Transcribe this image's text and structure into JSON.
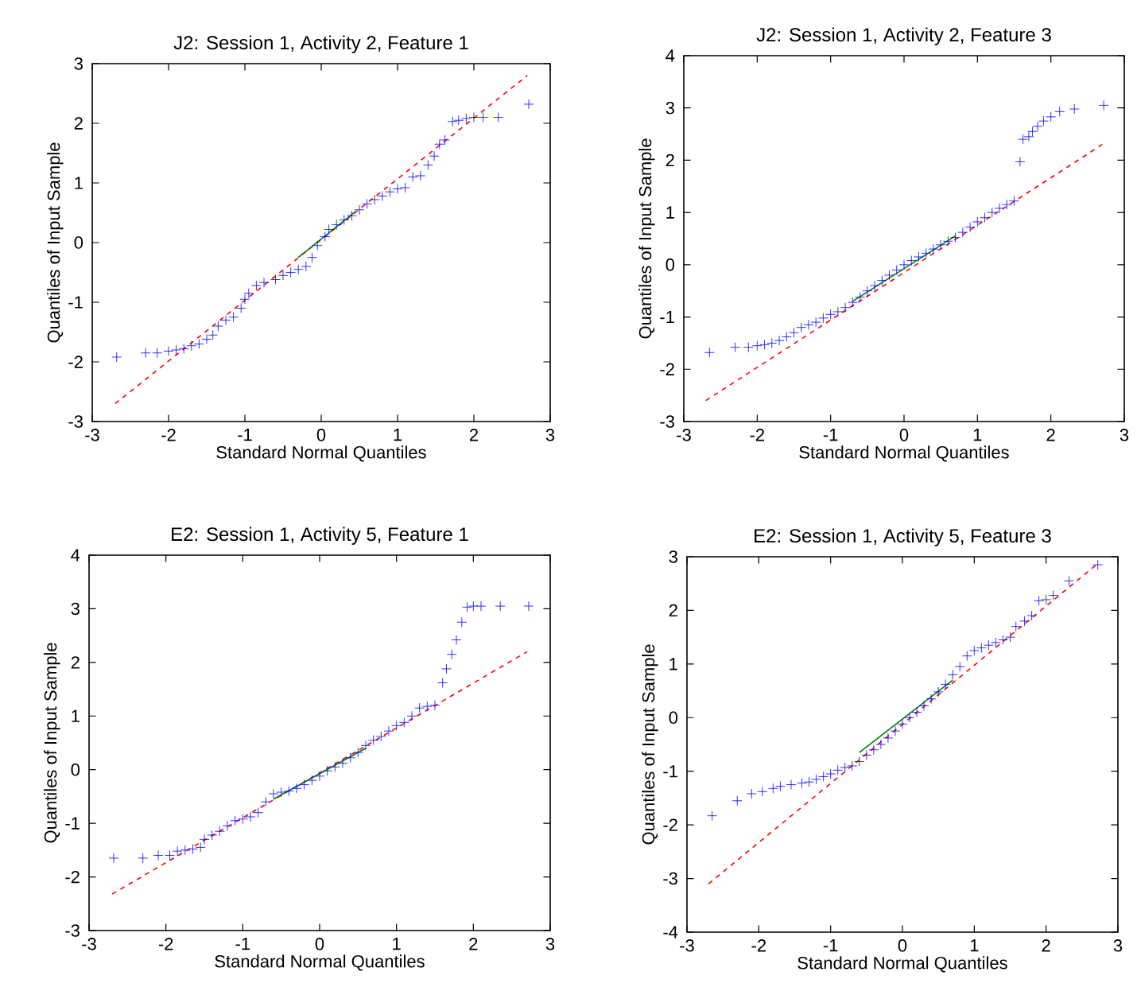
{
  "chart_data": [
    {
      "type": "scatter",
      "title": "J2: Session 1, Activity 2, Feature 1",
      "xlabel": "Standard Normal Quantiles",
      "ylabel": "Quantiles of Input Sample",
      "xlim": [
        -3,
        3
      ],
      "ylim": [
        -3,
        3
      ],
      "xticks": [
        -3,
        -2,
        -1,
        0,
        1,
        2,
        3
      ],
      "yticks": [
        -3,
        -2,
        -1,
        0,
        1,
        2,
        3
      ],
      "series": [
        {
          "type": "scatter",
          "marker": "cross",
          "color": "#0000ff",
          "x": [
            -2.68,
            -2.3,
            -2.15,
            -2.0,
            -1.9,
            -1.8,
            -1.7,
            -1.6,
            -1.5,
            -1.42,
            -1.35,
            -1.25,
            -1.15,
            -1.05,
            -1.0,
            -0.95,
            -0.85,
            -0.75,
            -0.6,
            -0.5,
            -0.4,
            -0.3,
            -0.2,
            -0.12,
            -0.05,
            0.05,
            0.1,
            0.2,
            0.3,
            0.4,
            0.5,
            0.6,
            0.7,
            0.8,
            0.9,
            1.0,
            1.1,
            1.2,
            1.3,
            1.4,
            1.48,
            1.55,
            1.62,
            1.72,
            1.8,
            1.9,
            2.0,
            2.12,
            2.32,
            2.72
          ],
          "values": [
            -1.92,
            -1.85,
            -1.85,
            -1.82,
            -1.8,
            -1.78,
            -1.73,
            -1.7,
            -1.62,
            -1.55,
            -1.4,
            -1.3,
            -1.25,
            -1.1,
            -0.95,
            -0.85,
            -0.72,
            -0.67,
            -0.62,
            -0.55,
            -0.5,
            -0.45,
            -0.4,
            -0.25,
            -0.05,
            0.1,
            0.22,
            0.3,
            0.38,
            0.45,
            0.55,
            0.65,
            0.72,
            0.78,
            0.85,
            0.9,
            0.92,
            1.1,
            1.12,
            1.3,
            1.45,
            1.65,
            1.72,
            2.03,
            2.05,
            2.08,
            2.1,
            2.1,
            2.1,
            2.32
          ]
        },
        {
          "type": "line",
          "line_style": "dashed",
          "color": "#ff0000",
          "x": [
            -2.7,
            2.7
          ],
          "values": [
            -2.7,
            2.8
          ]
        },
        {
          "type": "line",
          "line_style": "solid",
          "color": "#008000",
          "x": [
            -0.3,
            0.45
          ],
          "values": [
            -0.25,
            0.52
          ]
        }
      ]
    },
    {
      "type": "scatter",
      "title": "J2: Session 1, Activity 2, Feature 3",
      "xlabel": "Standard Normal Quantiles",
      "ylabel": "Quantiles of Input Sample",
      "xlim": [
        -3,
        3
      ],
      "ylim": [
        -3,
        4
      ],
      "xticks": [
        -3,
        -2,
        -1,
        0,
        1,
        2,
        3
      ],
      "yticks": [
        -3,
        -2,
        -1,
        0,
        1,
        2,
        3,
        4
      ],
      "series": [
        {
          "type": "scatter",
          "marker": "cross",
          "color": "#0000ff",
          "x": [
            -2.65,
            -2.3,
            -2.12,
            -2.0,
            -1.9,
            -1.8,
            -1.7,
            -1.6,
            -1.5,
            -1.4,
            -1.3,
            -1.2,
            -1.1,
            -1.0,
            -0.9,
            -0.8,
            -0.7,
            -0.6,
            -0.5,
            -0.4,
            -0.3,
            -0.2,
            -0.1,
            0,
            0.1,
            0.2,
            0.3,
            0.4,
            0.5,
            0.6,
            0.7,
            0.8,
            0.9,
            1.0,
            1.1,
            1.2,
            1.3,
            1.4,
            1.5,
            1.58,
            1.62,
            1.7,
            1.75,
            1.82,
            1.9,
            2.0,
            2.12,
            2.32,
            2.72
          ],
          "values": [
            -1.68,
            -1.58,
            -1.58,
            -1.55,
            -1.53,
            -1.5,
            -1.45,
            -1.38,
            -1.3,
            -1.2,
            -1.15,
            -1.1,
            -1.02,
            -0.95,
            -0.9,
            -0.82,
            -0.72,
            -0.62,
            -0.5,
            -0.4,
            -0.3,
            -0.2,
            -0.1,
            0,
            0.08,
            0.15,
            0.22,
            0.3,
            0.38,
            0.45,
            0.52,
            0.62,
            0.72,
            0.82,
            0.9,
            1.0,
            1.08,
            1.15,
            1.22,
            1.97,
            2.4,
            2.45,
            2.55,
            2.65,
            2.75,
            2.83,
            2.93,
            2.98,
            3.05
          ]
        },
        {
          "type": "line",
          "line_style": "dashed",
          "color": "#ff0000",
          "x": [
            -2.7,
            2.7
          ],
          "values": [
            -2.6,
            2.3
          ]
        },
        {
          "type": "line",
          "line_style": "solid",
          "color": "#008000",
          "x": [
            -0.7,
            0.7
          ],
          "values": [
            -0.7,
            0.55
          ]
        }
      ]
    },
    {
      "type": "scatter",
      "title": "E2: Session 1, Activity 5, Feature 1",
      "xlabel": "Standard Normal Quantiles",
      "ylabel": "Quantiles of Input Sample",
      "xlim": [
        -3,
        3
      ],
      "ylim": [
        -3,
        4
      ],
      "xticks": [
        -3,
        -2,
        -1,
        0,
        1,
        2,
        3
      ],
      "yticks": [
        -3,
        -2,
        -1,
        0,
        1,
        2,
        3,
        4
      ],
      "series": [
        {
          "type": "scatter",
          "marker": "cross",
          "color": "#0000ff",
          "x": [
            -2.68,
            -2.3,
            -2.1,
            -1.95,
            -1.85,
            -1.75,
            -1.65,
            -1.55,
            -1.5,
            -1.4,
            -1.3,
            -1.2,
            -1.1,
            -1.0,
            -0.9,
            -0.8,
            -0.7,
            -0.6,
            -0.5,
            -0.4,
            -0.3,
            -0.2,
            -0.1,
            0,
            0.1,
            0.2,
            0.3,
            0.4,
            0.5,
            0.6,
            0.7,
            0.8,
            0.9,
            1.0,
            1.1,
            1.2,
            1.3,
            1.4,
            1.5,
            1.6,
            1.65,
            1.72,
            1.78,
            1.85,
            1.92,
            2.0,
            2.1,
            2.35,
            2.72
          ],
          "values": [
            -1.65,
            -1.65,
            -1.6,
            -1.6,
            -1.52,
            -1.5,
            -1.48,
            -1.45,
            -1.3,
            -1.22,
            -1.15,
            -1.05,
            -0.95,
            -0.92,
            -0.88,
            -0.8,
            -0.6,
            -0.45,
            -0.42,
            -0.4,
            -0.35,
            -0.28,
            -0.2,
            -0.12,
            -0.02,
            0.05,
            0.12,
            0.22,
            0.32,
            0.45,
            0.55,
            0.62,
            0.72,
            0.82,
            0.88,
            1.0,
            1.15,
            1.18,
            1.2,
            1.62,
            1.88,
            2.15,
            2.42,
            2.75,
            3.03,
            3.05,
            3.05,
            3.05,
            3.05
          ]
        },
        {
          "type": "line",
          "line_style": "dashed",
          "color": "#ff0000",
          "x": [
            -2.7,
            2.7
          ],
          "values": [
            -2.32,
            2.2
          ]
        },
        {
          "type": "line",
          "line_style": "solid",
          "color": "#008000",
          "x": [
            -0.6,
            0.6
          ],
          "values": [
            -0.55,
            0.4
          ]
        }
      ]
    },
    {
      "type": "scatter",
      "title": "E2: Session 1, Activity 5, Feature 3",
      "xlabel": "Standard Normal Quantiles",
      "ylabel": "Quantiles of Input Sample",
      "xlim": [
        -3,
        3
      ],
      "ylim": [
        -4,
        3
      ],
      "xticks": [
        -3,
        -2,
        -1,
        0,
        1,
        2,
        3
      ],
      "yticks": [
        -4,
        -3,
        -2,
        -1,
        0,
        1,
        2,
        3
      ],
      "series": [
        {
          "type": "scatter",
          "marker": "cross",
          "color": "#0000ff",
          "x": [
            -2.65,
            -2.3,
            -2.1,
            -1.95,
            -1.8,
            -1.7,
            -1.55,
            -1.4,
            -1.3,
            -1.2,
            -1.1,
            -1.0,
            -0.9,
            -0.8,
            -0.7,
            -0.6,
            -0.5,
            -0.4,
            -0.3,
            -0.2,
            -0.1,
            0,
            0.1,
            0.2,
            0.3,
            0.4,
            0.5,
            0.6,
            0.7,
            0.8,
            0.9,
            1.0,
            1.1,
            1.2,
            1.3,
            1.4,
            1.5,
            1.58,
            1.7,
            1.8,
            1.9,
            2.0,
            2.1,
            2.32,
            2.72
          ],
          "values": [
            -1.83,
            -1.55,
            -1.42,
            -1.38,
            -1.32,
            -1.28,
            -1.25,
            -1.22,
            -1.2,
            -1.15,
            -1.1,
            -1.05,
            -0.98,
            -0.93,
            -0.9,
            -0.82,
            -0.7,
            -0.6,
            -0.5,
            -0.38,
            -0.25,
            -0.12,
            0.0,
            0.1,
            0.22,
            0.35,
            0.48,
            0.62,
            0.8,
            0.95,
            1.15,
            1.25,
            1.3,
            1.35,
            1.4,
            1.45,
            1.5,
            1.7,
            1.8,
            1.9,
            2.18,
            2.2,
            2.28,
            2.55,
            2.85
          ]
        },
        {
          "type": "line",
          "line_style": "dashed",
          "color": "#ff0000",
          "x": [
            -2.7,
            2.7
          ],
          "values": [
            -3.1,
            2.85
          ]
        },
        {
          "type": "line",
          "line_style": "solid",
          "color": "#008000",
          "x": [
            -0.6,
            0.7
          ],
          "values": [
            -0.65,
            0.7
          ]
        }
      ]
    }
  ]
}
